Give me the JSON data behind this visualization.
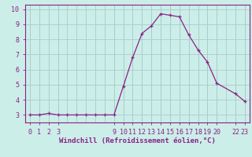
{
  "x": [
    0,
    1,
    2,
    3,
    4,
    5,
    6,
    7,
    8,
    9,
    10,
    11,
    12,
    13,
    14,
    15,
    16,
    17,
    18,
    19,
    20,
    22,
    23
  ],
  "y": [
    3.0,
    3.0,
    3.1,
    3.0,
    3.0,
    3.0,
    3.0,
    3.0,
    3.0,
    3.0,
    4.9,
    6.8,
    8.4,
    8.9,
    9.7,
    9.6,
    9.5,
    8.3,
    7.3,
    6.5,
    5.1,
    4.4,
    3.9
  ],
  "line_color": "#882288",
  "marker": "+",
  "background_color": "#cceee8",
  "grid_color": "#aacccc",
  "xlabel": "Windchill (Refroidissement éolien,°C)",
  "xlim": [
    -0.5,
    23.5
  ],
  "ylim": [
    2.5,
    10.3
  ],
  "yticks": [
    3,
    4,
    5,
    6,
    7,
    8,
    9,
    10
  ],
  "xtick_positions": [
    0,
    1,
    2,
    3,
    9,
    10,
    11,
    12,
    13,
    14,
    15,
    16,
    17,
    18,
    19,
    20,
    22,
    23
  ],
  "xtick_labels": [
    "0",
    "1",
    "2",
    "3",
    "9",
    "10",
    "11",
    "12",
    "13",
    "14",
    "15",
    "16",
    "17",
    "18",
    "19",
    "20",
    "22",
    "23"
  ],
  "axis_label_fontsize": 6.5,
  "tick_fontsize": 6.0
}
